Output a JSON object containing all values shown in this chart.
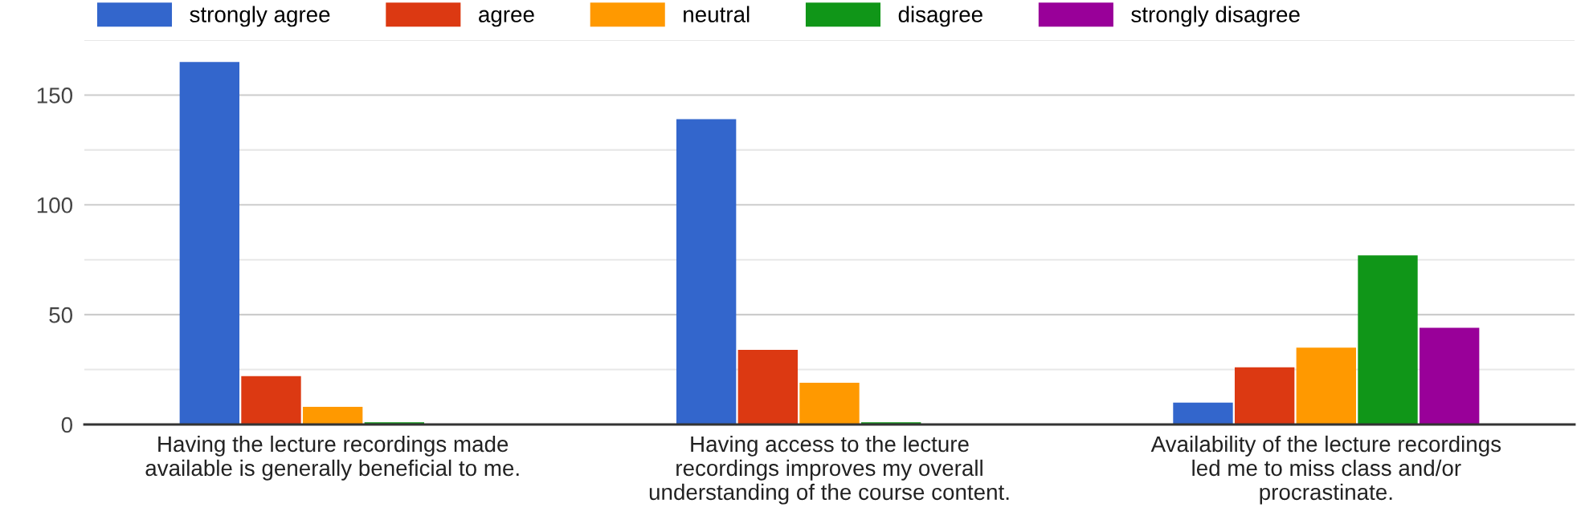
{
  "chart_data": {
    "type": "bar",
    "categories": [
      "Having the lecture recordings made\navailable is generally beneficial to me.",
      "Having access to the lecture\nrecordings improves my overall\nunderstanding of the course content.",
      "Availability of the lecture recordings\nled me to miss class and/or\nprocrastinate."
    ],
    "series": [
      {
        "name": "strongly agree",
        "color": "#3366cc",
        "values": [
          165,
          139,
          10
        ]
      },
      {
        "name": "agree",
        "color": "#dc3912",
        "values": [
          22,
          34,
          26
        ]
      },
      {
        "name": "neutral",
        "color": "#ff9900",
        "values": [
          8,
          19,
          35
        ]
      },
      {
        "name": "disagree",
        "color": "#109618",
        "values": [
          1,
          1,
          77
        ]
      },
      {
        "name": "strongly disagree",
        "color": "#990099",
        "values": [
          0,
          0,
          44
        ]
      }
    ],
    "ylim": [
      0,
      175
    ],
    "yticks": [
      0,
      {
        "value": 25,
        "label": null
      },
      50,
      {
        "value": 75,
        "label": null
      },
      100,
      {
        "value": 125,
        "label": null
      },
      150,
      {
        "value": 175,
        "label": null
      }
    ],
    "grid": "y",
    "legend": "top"
  }
}
